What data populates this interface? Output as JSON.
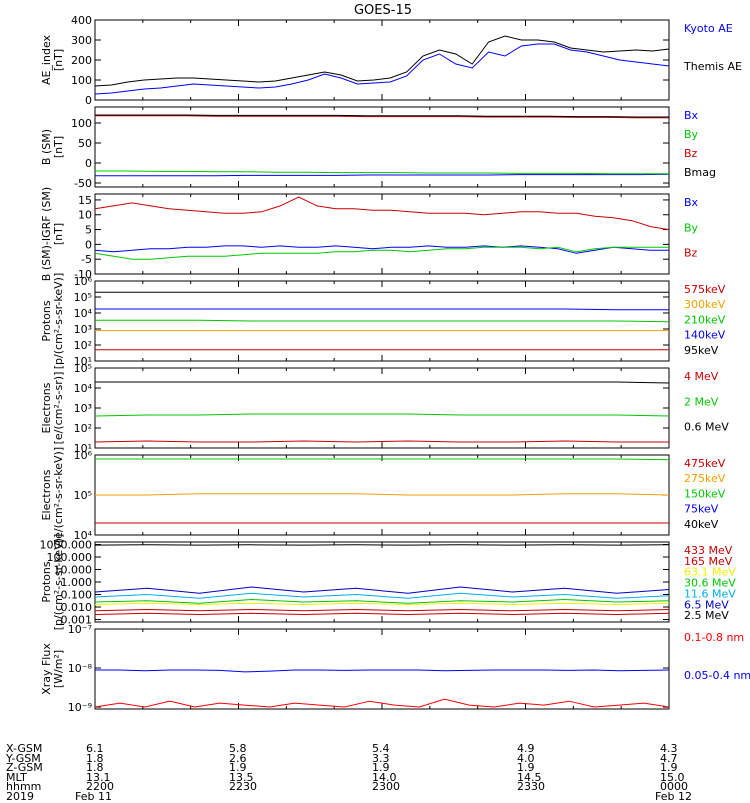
{
  "title": "GOES-15",
  "chart_data": [
    {
      "type": "line",
      "ylabel": "AE_index\n[nT]",
      "ylim": [
        0,
        400
      ],
      "yscale": "linear",
      "yticks": [
        "0",
        "100",
        "200",
        "300",
        "400"
      ],
      "ytick_values": [
        0,
        100,
        200,
        300,
        400
      ],
      "series": [
        {
          "name": "Kyoto AE",
          "color": "#0000ff",
          "values": [
            30,
            35,
            45,
            55,
            60,
            70,
            80,
            75,
            70,
            65,
            60,
            65,
            80,
            100,
            130,
            110,
            80,
            85,
            90,
            120,
            200,
            230,
            180,
            160,
            240,
            220,
            270,
            280,
            280,
            250,
            240,
            220,
            200,
            190,
            180,
            170
          ]
        },
        {
          "name": "Themis AE",
          "color": "#000000",
          "values": [
            70,
            75,
            90,
            100,
            105,
            110,
            110,
            105,
            100,
            95,
            90,
            95,
            110,
            125,
            140,
            125,
            95,
            100,
            110,
            140,
            220,
            250,
            230,
            180,
            290,
            320,
            300,
            300,
            290,
            260,
            250,
            240,
            245,
            250,
            245,
            255
          ]
        }
      ]
    },
    {
      "type": "line",
      "ylabel": "B (SM)\n[nT]",
      "ylim": [
        -60,
        140
      ],
      "yscale": "linear",
      "yticks": [
        "-50",
        "0",
        "50",
        "100"
      ],
      "ytick_values": [
        -50,
        0,
        50,
        100
      ],
      "series": [
        {
          "name": "Bx",
          "color": "#0000ff",
          "values": [
            -32,
            -32,
            -32,
            -32,
            -32,
            -31,
            -31,
            -31,
            -31,
            -30,
            -30,
            -30,
            -30,
            -30,
            -29,
            -29,
            -29,
            -29,
            -29,
            -28
          ]
        },
        {
          "name": "By",
          "color": "#00c800",
          "values": [
            -20,
            -20,
            -21,
            -21,
            -22,
            -22,
            -23,
            -23,
            -24,
            -24,
            -24,
            -25,
            -25,
            -25,
            -26,
            -26,
            -26,
            -27,
            -27,
            -27
          ]
        },
        {
          "name": "Bz",
          "color": "#c80000",
          "values": [
            118,
            118,
            118,
            118,
            117,
            117,
            117,
            117,
            117,
            116,
            116,
            116,
            116,
            115,
            115,
            115,
            114,
            114,
            113,
            113
          ]
        },
        {
          "name": "Bmag",
          "color": "#000000",
          "values": [
            120,
            120,
            120,
            120,
            119,
            119,
            119,
            119,
            119,
            118,
            118,
            118,
            118,
            117,
            117,
            117,
            116,
            116,
            115,
            115
          ]
        }
      ]
    },
    {
      "type": "line",
      "ylabel": "B (SM)-IGRF (SM)\n[nT]",
      "ylim": [
        -10,
        17
      ],
      "yscale": "linear",
      "yticks": [
        "-10",
        "-5",
        "0",
        "5",
        "10",
        "15"
      ],
      "ytick_values": [
        -10,
        -5,
        0,
        5,
        10,
        15
      ],
      "series": [
        {
          "name": "Bx",
          "color": "#0000ff",
          "values": [
            -2,
            -2.5,
            -2,
            -1.5,
            -1.5,
            -1,
            -1,
            -0.5,
            -0.5,
            -1,
            -0.5,
            -1,
            -1,
            -0.5,
            -1,
            -1.5,
            -1,
            -1,
            -0.5,
            -1,
            -1,
            -0.5,
            -1,
            -0.5,
            -1,
            -1.5,
            -3,
            -2,
            -1,
            -1.5,
            -2,
            -2
          ]
        },
        {
          "name": "By",
          "color": "#00c800",
          "values": [
            -3,
            -4,
            -5,
            -5,
            -4.5,
            -4,
            -4,
            -4,
            -3.5,
            -3,
            -3,
            -3,
            -3,
            -2.5,
            -2.5,
            -2,
            -2,
            -2.5,
            -2,
            -1.5,
            -1.5,
            -1,
            -1,
            -1,
            -1.5,
            -1,
            -2.5,
            -1.5,
            -1,
            -1,
            -1,
            -1
          ]
        },
        {
          "name": "Bz",
          "color": "#c80000",
          "values": [
            12,
            13,
            14,
            13,
            12,
            11.5,
            11,
            10.5,
            10.5,
            11,
            13,
            16,
            13,
            12,
            12,
            11.5,
            11.5,
            11,
            10.5,
            10.5,
            10.5,
            10,
            10.5,
            11,
            11,
            10.5,
            10.5,
            9.5,
            9,
            8,
            6,
            5
          ]
        }
      ]
    },
    {
      "type": "line",
      "ylabel": "Protons\n[p/(cm²-s-sr-keV)]",
      "ylim": [
        1,
        6
      ],
      "yscale": "log",
      "yticks": [
        "10¹",
        "10²",
        "10³",
        "10⁴",
        "10⁵",
        "10⁶"
      ],
      "ytick_values": [
        1,
        2,
        3,
        4,
        5,
        6
      ],
      "series": [
        {
          "name": "575keV",
          "color": "#c80000",
          "values": [
            1.7,
            1.7,
            1.7,
            1.7,
            1.7,
            1.7,
            1.7,
            1.7,
            1.7,
            1.7,
            1.7,
            1.7
          ]
        },
        {
          "name": "300keV",
          "color": "#f0a000",
          "values": [
            2.9,
            2.9,
            2.9,
            2.9,
            2.9,
            2.9,
            2.9,
            2.9,
            2.9,
            2.9,
            2.9,
            2.9
          ]
        },
        {
          "name": "210keV",
          "color": "#00c800",
          "values": [
            3.55,
            3.55,
            3.55,
            3.5,
            3.5,
            3.5,
            3.5,
            3.5,
            3.5,
            3.5,
            3.5,
            3.45
          ]
        },
        {
          "name": "140keV",
          "color": "#0000ff",
          "values": [
            4.25,
            4.25,
            4.25,
            4.25,
            4.25,
            4.25,
            4.25,
            4.25,
            4.25,
            4.25,
            4.2,
            4.2
          ]
        },
        {
          "name": "95keV",
          "color": "#000000",
          "values": [
            5.3,
            5.3,
            5.3,
            5.3,
            5.3,
            5.3,
            5.3,
            5.3,
            5.3,
            5.3,
            5.3,
            5.3
          ]
        }
      ]
    },
    {
      "type": "line",
      "ylabel": "Electrons\n[e/(cm²-s-sr)]",
      "ylim": [
        1,
        5
      ],
      "yscale": "log",
      "yticks": [
        "10¹",
        "10²",
        "10³",
        "10⁴",
        "10⁵"
      ],
      "ytick_values": [
        1,
        2,
        3,
        4,
        5
      ],
      "series": [
        {
          "name": "4 MeV",
          "color": "#c80000",
          "values": [
            1.3,
            1.35,
            1.3,
            1.3,
            1.35,
            1.3,
            1.35,
            1.3,
            1.3,
            1.35,
            1.3,
            1.3
          ]
        },
        {
          "name": "2 MeV",
          "color": "#00c800",
          "values": [
            2.6,
            2.65,
            2.65,
            2.7,
            2.7,
            2.7,
            2.7,
            2.65,
            2.65,
            2.65,
            2.65,
            2.6
          ]
        },
        {
          "name": "0.6 MeV",
          "color": "#000000",
          "values": [
            4.3,
            4.3,
            4.3,
            4.3,
            4.3,
            4.3,
            4.3,
            4.3,
            4.3,
            4.3,
            4.3,
            4.25
          ]
        }
      ]
    },
    {
      "type": "line",
      "ylabel": "Electrons\n[e/(cm²-s-sr-keV)]",
      "ylim": [
        4,
        6
      ],
      "yscale": "log",
      "yticks": [
        "10⁴",
        "10⁵",
        "10⁶"
      ],
      "ytick_values": [
        4,
        5,
        6
      ],
      "series": [
        {
          "name": "475keV",
          "color": "#c80000",
          "values": [
            4.3,
            4.3,
            4.3,
            4.3,
            4.3,
            4.3,
            4.3,
            4.3,
            4.3,
            4.3,
            4.3,
            4.3
          ]
        },
        {
          "name": "275keV",
          "color": "#f0a000",
          "values": [
            5.0,
            5.0,
            5.03,
            5.03,
            5.03,
            5.03,
            5.0,
            5.0,
            5.0,
            5.03,
            5.03,
            5.0
          ]
        },
        {
          "name": "150keV",
          "color": "#00c800",
          "values": [
            5.9,
            5.9,
            5.9,
            5.9,
            5.9,
            5.9,
            5.9,
            5.9,
            5.9,
            5.9,
            5.9,
            5.88
          ]
        },
        {
          "name": "75keV",
          "color": "#0000ff",
          "values": []
        },
        {
          "name": "40keV",
          "color": "#000000",
          "values": []
        }
      ]
    },
    {
      "type": "line",
      "ylabel": "Protons\n[p/(cm²-s-sr-keV)]",
      "ylim": [
        -3.2,
        3.2
      ],
      "yscale": "log",
      "yticks": [
        "0.001",
        "0.010",
        "0.100",
        "1.000",
        "10.000",
        "100.000",
        "1000.000"
      ],
      "ytick_values": [
        -3,
        -2,
        -1,
        0,
        1,
        2,
        3
      ],
      "series": [
        {
          "name": "433 MeV",
          "color": "#c80000",
          "values": [
            -2.6,
            -2.5,
            -2.6,
            -2.5,
            -2.6,
            -2.5,
            -2.6,
            -2.5,
            -2.6,
            -2.5,
            -2.6,
            -2.5
          ]
        },
        {
          "name": "165 MeV",
          "color": "#c80000",
          "values": [
            -2.3,
            -2.2,
            -2.3,
            -2.2,
            -2.3,
            -2.2,
            -2.3,
            -2.2,
            -2.3,
            -2.2,
            -2.3,
            -2.2
          ]
        },
        {
          "name": "63.1 MeV",
          "color": "#f0f000",
          "values": [
            -1.8,
            -1.7,
            -1.8,
            -1.7,
            -1.8,
            -1.7,
            -1.8,
            -1.7,
            -1.8,
            -1.7,
            -1.8,
            -1.7
          ]
        },
        {
          "name": "30.6 MeV",
          "color": "#00c800",
          "values": [
            -1.6,
            -1.5,
            -1.7,
            -1.4,
            -1.6,
            -1.5,
            -1.7,
            -1.5,
            -1.6,
            -1.4,
            -1.6,
            -1.5
          ]
        },
        {
          "name": "11.6 MeV",
          "color": "#00b0f0",
          "values": [
            -1.2,
            -1.0,
            -1.3,
            -0.9,
            -1.2,
            -1.0,
            -1.3,
            -0.9,
            -1.2,
            -1.0,
            -1.3,
            -1.1
          ]
        },
        {
          "name": "6.5 MeV",
          "color": "#0000c8",
          "values": [
            -0.8,
            -0.5,
            -0.9,
            -0.4,
            -0.8,
            -0.5,
            -0.9,
            -0.4,
            -0.8,
            -0.5,
            -0.9,
            -0.6
          ]
        },
        {
          "name": "2.5 MeV",
          "color": "#000000",
          "values": [
            2.95,
            2.98,
            2.95,
            2.98,
            2.95,
            2.98,
            2.95,
            2.98,
            2.95,
            2.98,
            2.95,
            2.98
          ]
        }
      ]
    },
    {
      "type": "line",
      "ylabel": "Xray Flux\n[W/m²]",
      "ylim": [
        -9.05,
        -7
      ],
      "yscale": "log",
      "yticks": [
        "10⁻⁹",
        "10⁻⁸",
        "10⁻⁷"
      ],
      "ytick_values": [
        -9,
        -8,
        -7
      ],
      "series": [
        {
          "name": "0.1-0.8 nm",
          "color": "#ff0000",
          "values": [
            -9.0,
            -8.9,
            -9.0,
            -8.85,
            -9.0,
            -8.9,
            -8.95,
            -9.0,
            -8.9,
            -8.95,
            -9.0,
            -8.85,
            -8.95,
            -9.0,
            -8.8,
            -8.95,
            -9.0,
            -8.9,
            -8.95,
            -8.85,
            -9.0,
            -8.95,
            -8.9,
            -9.0
          ]
        },
        {
          "name": "0.05-0.4 nm",
          "color": "#0000ff",
          "values": [
            -8.05,
            -8.05,
            -8.07,
            -8.05,
            -8.05,
            -8.06,
            -8.1,
            -8.08,
            -8.05,
            -8.05,
            -8.06,
            -8.05,
            -8.05,
            -8.05,
            -8.07,
            -8.06,
            -8.05,
            -8.05,
            -8.05,
            -8.06,
            -8.05,
            -8.07,
            -8.06,
            -8.05
          ]
        }
      ]
    }
  ],
  "footer": {
    "labels": [
      "X-GSM",
      "Y-GSM",
      "Z-GSM",
      "MLT",
      "hhmm",
      "2019"
    ],
    "columns": [
      {
        "values": [
          "6.1",
          "1.8",
          "1.8",
          "13.1",
          "2200",
          "Feb 11"
        ]
      },
      {
        "values": [
          "5.8",
          "2.6",
          "1.9",
          "13.5",
          "2230",
          ""
        ]
      },
      {
        "values": [
          "5.4",
          "3.3",
          "1.9",
          "14.0",
          "2300",
          ""
        ]
      },
      {
        "values": [
          "4.9",
          "4.0",
          "1.9",
          "14.5",
          "2330",
          ""
        ]
      },
      {
        "values": [
          "4.3",
          "4.7",
          "1.9",
          "15.0",
          "0000",
          "Feb 12"
        ]
      }
    ]
  }
}
